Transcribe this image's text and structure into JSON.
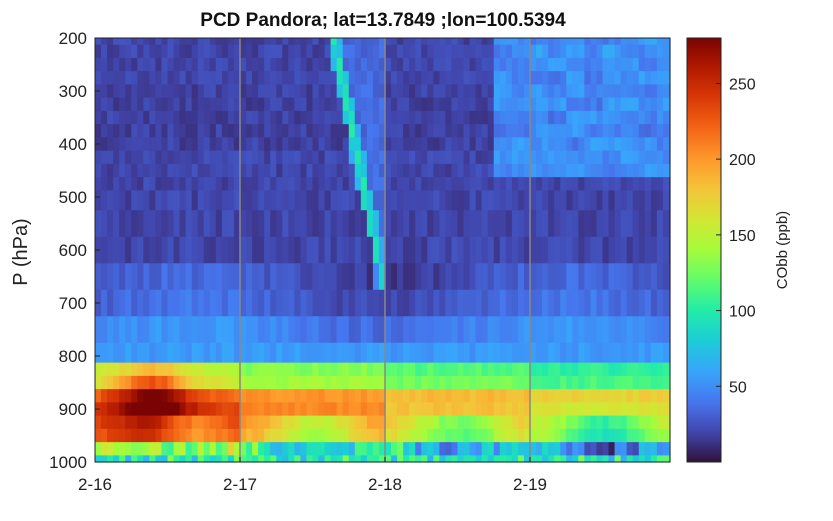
{
  "chart_data": {
    "type": "heatmap",
    "title": "PCD Pandora; lat=13.7849 ;lon=100.5394",
    "xlabel": "",
    "ylabel": "P (hPa)",
    "colorbar_label": "CObb (ppb)",
    "colormap": "turbo",
    "y_reversed": true,
    "x_range": [
      "2-16",
      "2-19 23:00"
    ],
    "y_range": [
      200,
      1000
    ],
    "color_range": [
      0,
      280
    ],
    "x_ticks": [
      "2-16",
      "2-17",
      "2-18",
      "2-19"
    ],
    "y_ticks": [
      200,
      300,
      400,
      500,
      600,
      700,
      800,
      900,
      1000
    ],
    "colorbar_ticks": [
      50,
      100,
      150,
      200,
      250
    ],
    "vertical_lines_at": [
      "2-17",
      "2-18",
      "2-19"
    ],
    "time_step_hours": 1,
    "pressure_levels_hPa": [
      200,
      225,
      250,
      275,
      300,
      325,
      350,
      375,
      400,
      425,
      450,
      475,
      500,
      550,
      600,
      650,
      700,
      750,
      800,
      825,
      850,
      875,
      900,
      925,
      950,
      975,
      1000
    ],
    "background_ppb_by_level": [
      20,
      20,
      20,
      20,
      18,
      18,
      18,
      18,
      18,
      20,
      20,
      20,
      20,
      20,
      20,
      25,
      30,
      45,
      55,
      130,
      140,
      200,
      205,
      200,
      190,
      120,
      95
    ],
    "features": [
      {
        "name": "plume",
        "pressure_range_hPa": [
          200,
          650
        ],
        "value_ppb": 90,
        "time": "2-17 17:00 to 2-17 21:00 descending"
      },
      {
        "name": "boundary-layer maximum",
        "pressure_range_hPa": [
          825,
          975
        ],
        "peak_ppb": 280,
        "time": "2-16 05:00 to 2-16 15:00"
      },
      {
        "name": "upper-level enhancement",
        "pressure_range_hPa": [
          200,
          450
        ],
        "value_ppb": 50,
        "time": "2-18 19:00 to 2-19 23:00"
      }
    ]
  }
}
